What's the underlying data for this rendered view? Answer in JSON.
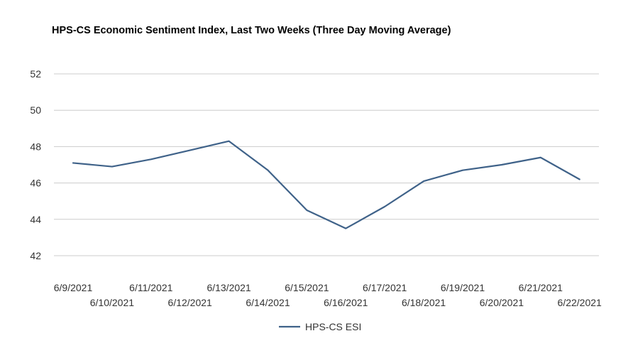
{
  "chart_data": {
    "type": "line",
    "title": "HPS-CS Economic Sentiment Index, Last Two Weeks (Three Day Moving Average)",
    "xlabel": "",
    "ylabel": "",
    "ylim": [
      42,
      52
    ],
    "yticks": [
      "42",
      "44",
      "46",
      "48",
      "50",
      "52"
    ],
    "grid": true,
    "legend_position": "bottom",
    "categories": [
      "6/9/2021",
      "6/10/2021",
      "6/11/2021",
      "6/12/2021",
      "6/13/2021",
      "6/14/2021",
      "6/15/2021",
      "6/16/2021",
      "6/17/2021",
      "6/18/2021",
      "6/19/2021",
      "6/20/2021",
      "6/21/2021",
      "6/22/2021"
    ],
    "series": [
      {
        "name": "HPS-CS ESI",
        "color": "#3f6289",
        "values": [
          47.1,
          46.9,
          47.3,
          47.8,
          48.3,
          46.7,
          44.5,
          43.5,
          44.7,
          46.1,
          46.7,
          47.0,
          47.4,
          46.2
        ]
      }
    ]
  }
}
